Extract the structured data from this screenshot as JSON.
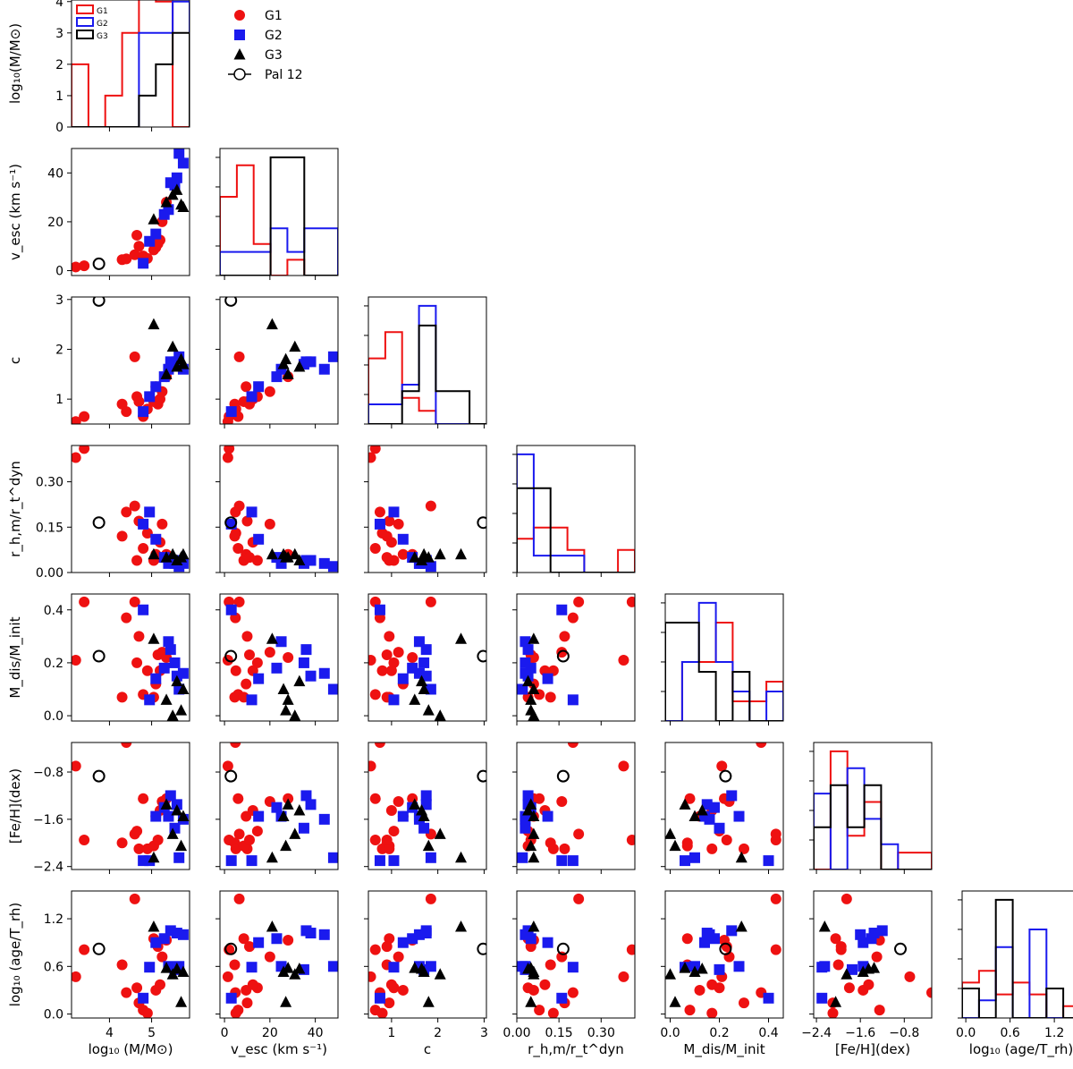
{
  "chart_data": {
    "type": "corner-scatter-histogram",
    "figure_title": "",
    "variables": [
      {
        "key": "logM",
        "range": [
          3.1,
          5.9
        ],
        "ticks": [
          {
            "v": 4,
            "label": "4"
          },
          {
            "v": 5,
            "label": "5"
          }
        ],
        "label_text": "log₁₀ (M/M⊙)",
        "ylabel_text": "log₁₀(M/M⊙)"
      },
      {
        "key": "vesc",
        "range": [
          -2,
          50
        ],
        "ticks": [
          {
            "v": 0,
            "label": "0"
          },
          {
            "v": 20,
            "label": "20"
          },
          {
            "v": 40,
            "label": "40"
          }
        ],
        "label_text": "v_esc (km s⁻¹)",
        "ylabel_text": "v_esc (km s⁻¹)"
      },
      {
        "key": "c",
        "range": [
          0.5,
          3.05
        ],
        "ticks": [
          {
            "v": 1,
            "label": "1"
          },
          {
            "v": 2,
            "label": "2"
          },
          {
            "v": 3,
            "label": "3"
          }
        ],
        "label_text": "c",
        "ylabel_text": "c"
      },
      {
        "key": "rhm",
        "range": [
          0,
          0.42
        ],
        "ticks": [
          {
            "v": 0,
            "label": "0.00"
          },
          {
            "v": 0.15,
            "label": "0.15"
          },
          {
            "v": 0.3,
            "label": "0.30"
          }
        ],
        "label_text": "r_h,m/r_t^dyn",
        "ylabel_text": "r_h,m/r_t^dyn"
      },
      {
        "key": "mdis",
        "range": [
          -0.02,
          0.46
        ],
        "ticks": [
          {
            "v": 0,
            "label": "0.0"
          },
          {
            "v": 0.2,
            "label": "0.2"
          },
          {
            "v": 0.4,
            "label": "0.4"
          }
        ],
        "label_text": "M_dis/M_init",
        "ylabel_text": "M_dis/M_init"
      },
      {
        "key": "feh",
        "range": [
          -2.45,
          -0.3
        ],
        "ticks": [
          {
            "v": -2.4,
            "label": "−2.4"
          },
          {
            "v": -1.6,
            "label": "−1.6"
          },
          {
            "v": -0.8,
            "label": "−0.8"
          }
        ],
        "label_text": "[Fe/H](dex)",
        "ylabel_text": "[Fe/H](dex)"
      },
      {
        "key": "age",
        "range": [
          -0.05,
          1.55
        ],
        "ticks": [
          {
            "v": 0,
            "label": "0.0"
          },
          {
            "v": 0.6,
            "label": "0.6"
          },
          {
            "v": 1.2,
            "label": "1.2"
          }
        ],
        "label_text": "log₁₀ (age/T_rh)",
        "ylabel_text": "log₁₀ (age/T_rh)"
      }
    ],
    "top_hist_yaxis": {
      "range": [
        0,
        4.05
      ],
      "ticks": [
        {
          "v": 0,
          "label": "0"
        },
        {
          "v": 1,
          "label": "1"
        },
        {
          "v": 2,
          "label": "2"
        },
        {
          "v": 3,
          "label": "3"
        },
        {
          "v": 4,
          "label": "4"
        }
      ]
    },
    "groups": [
      {
        "name": "G1",
        "color": "#ee1111",
        "marker": "circle",
        "points": [
          [
            3.2,
            1.5,
            0.55,
            0.38,
            0.21,
            -0.7,
            0.47
          ],
          [
            3.4,
            2,
            0.65,
            0.41,
            0.43,
            -1.95,
            0.81
          ],
          [
            4.3,
            4.5,
            0.9,
            0.12,
            0.07,
            -2.0,
            0.62
          ],
          [
            4.4,
            4.8,
            0.75,
            0.2,
            0.37,
            -0.3,
            0.27
          ],
          [
            4.6,
            6.5,
            1.85,
            0.22,
            0.43,
            -1.85,
            1.45
          ],
          [
            4.65,
            14.5,
            1.05,
            0.04,
            0.2,
            -1.8,
            0.33
          ],
          [
            4.7,
            10,
            0.95,
            0.17,
            0.3,
            -2.1,
            0.14
          ],
          [
            4.8,
            6,
            0.65,
            0.08,
            0.08,
            -1.25,
            0.05
          ],
          [
            4.9,
            5,
            0.8,
            0.13,
            0.17,
            -2.1,
            0.01
          ],
          [
            5.05,
            8.5,
            0.95,
            0.04,
            0.07,
            -2.05,
            0.95
          ],
          [
            5.1,
            9.5,
            1.25,
            0.06,
            0.12,
            -1.55,
            0.3
          ],
          [
            5.15,
            11,
            0.9,
            0.05,
            0.23,
            -1.95,
            0.85
          ],
          [
            5.2,
            12.5,
            1.0,
            0.1,
            0.17,
            -1.45,
            0.37
          ],
          [
            5.25,
            20,
            1.15,
            0.16,
            0.24,
            -1.3,
            0.72
          ],
          [
            5.35,
            28,
            1.45,
            0.06,
            0.22,
            -1.25,
            0.93
          ]
        ]
      },
      {
        "name": "G2",
        "color": "#1a1aee",
        "marker": "square",
        "points": [
          [
            4.8,
            3,
            0.75,
            0.16,
            0.4,
            -2.3,
            0.2
          ],
          [
            4.95,
            12,
            1.05,
            0.2,
            0.06,
            -2.3,
            0.59
          ],
          [
            5.1,
            15,
            1.25,
            0.11,
            0.14,
            -1.55,
            0.9
          ],
          [
            5.3,
            23,
            1.45,
            0.05,
            0.18,
            -1.4,
            0.95
          ],
          [
            5.4,
            25,
            1.6,
            0.03,
            0.28,
            -1.55,
            0.6
          ],
          [
            5.45,
            36,
            1.75,
            0.04,
            0.25,
            -1.2,
            1.05
          ],
          [
            5.55,
            35,
            1.7,
            0.03,
            0.2,
            -1.75,
            0.56
          ],
          [
            5.6,
            38,
            1.75,
            0.04,
            0.15,
            -1.35,
            1.02
          ],
          [
            5.65,
            48,
            1.85,
            0.02,
            0.1,
            -2.25,
            0.6
          ],
          [
            5.75,
            44,
            1.6,
            0.03,
            0.16,
            -1.6,
            1.0
          ]
        ]
      },
      {
        "name": "G3",
        "color": "#000000",
        "marker": "triangle",
        "points": [
          [
            5.05,
            21,
            2.5,
            0.06,
            0.29,
            -2.25,
            1.1
          ],
          [
            5.35,
            28,
            1.5,
            0.05,
            0.06,
            -1.35,
            0.58
          ],
          [
            5.5,
            31,
            2.05,
            0.06,
            0.0,
            -1.85,
            0.5
          ],
          [
            5.6,
            33,
            1.65,
            0.04,
            0.13,
            -1.45,
            0.57
          ],
          [
            5.7,
            27,
            1.8,
            0.05,
            0.02,
            -2.05,
            0.15
          ],
          [
            5.75,
            26,
            1.7,
            0.06,
            0.1,
            -1.55,
            0.53
          ]
        ]
      }
    ],
    "pal12": {
      "name": "Pal 12",
      "point": [
        3.75,
        2.8,
        2.98,
        0.165,
        0.225,
        -0.87,
        0.82
      ]
    },
    "legend_small": [
      "G1",
      "G2",
      "G3"
    ],
    "legend_main": [
      "G1",
      "G2",
      "G3",
      "Pal 12"
    ]
  }
}
